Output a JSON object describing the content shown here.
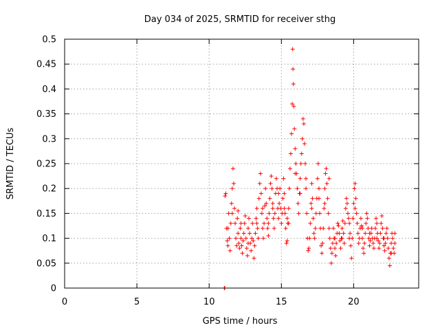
{
  "chart_data": {
    "type": "scatter",
    "title": "Day 034 of 2025, SRMTID for receiver sthg",
    "xlabel": "GPS time / hours",
    "ylabel": "SRMTID / TECUs",
    "xlim": [
      0,
      24.5
    ],
    "ylim": [
      0,
      0.5
    ],
    "xticks": [
      0,
      5,
      10,
      15,
      20
    ],
    "xtick_labels": [
      "0",
      "5",
      "10",
      "15",
      "20"
    ],
    "yticks": [
      0,
      0.05,
      0.1,
      0.15,
      0.2,
      0.25,
      0.3,
      0.35,
      0.4,
      0.45,
      0.5
    ],
    "ytick_labels": [
      "0",
      "0.05",
      "0.1",
      "0.15",
      "0.2",
      "0.25",
      "0.3",
      "0.35",
      "0.4",
      "0.45",
      "0.5"
    ],
    "grid": true,
    "marker": "+",
    "color": "#ff0000",
    "series": [
      {
        "name": "SRMTID",
        "points": [
          [
            11.05,
            0.0
          ],
          [
            11.08,
            0.0
          ],
          [
            11.1,
            0.185
          ],
          [
            11.15,
            0.19
          ],
          [
            11.2,
            0.12
          ],
          [
            11.25,
            0.095
          ],
          [
            11.3,
            0.085
          ],
          [
            11.35,
            0.15
          ],
          [
            11.4,
            0.1
          ],
          [
            11.45,
            0.075
          ],
          [
            11.5,
            0.13
          ],
          [
            11.55,
            0.17
          ],
          [
            11.6,
            0.2
          ],
          [
            11.65,
            0.24
          ],
          [
            11.7,
            0.21
          ],
          [
            11.75,
            0.16
          ],
          [
            11.8,
            0.13
          ],
          [
            11.85,
            0.1
          ],
          [
            11.9,
            0.085
          ],
          [
            11.95,
            0.14
          ],
          [
            12.0,
            0.11
          ],
          [
            12.05,
            0.09
          ],
          [
            12.1,
            0.08
          ],
          [
            12.15,
            0.12
          ],
          [
            12.2,
            0.1
          ],
          [
            12.25,
            0.085
          ],
          [
            12.3,
            0.07
          ],
          [
            12.35,
            0.095
          ],
          [
            12.4,
            0.11
          ],
          [
            12.45,
            0.13
          ],
          [
            12.5,
            0.145
          ],
          [
            12.55,
            0.1
          ],
          [
            12.6,
            0.08
          ],
          [
            12.65,
            0.065
          ],
          [
            12.7,
            0.12
          ],
          [
            12.75,
            0.14
          ],
          [
            12.8,
            0.11
          ],
          [
            12.85,
            0.09
          ],
          [
            12.9,
            0.075
          ],
          [
            12.95,
            0.1
          ],
          [
            13.0,
            0.13
          ],
          [
            13.05,
            0.095
          ],
          [
            13.1,
            0.06
          ],
          [
            13.15,
            0.085
          ],
          [
            13.2,
            0.11
          ],
          [
            13.25,
            0.14
          ],
          [
            13.3,
            0.16
          ],
          [
            13.35,
            0.12
          ],
          [
            13.4,
            0.1
          ],
          [
            13.45,
            0.18
          ],
          [
            13.5,
            0.21
          ],
          [
            13.55,
            0.23
          ],
          [
            13.6,
            0.19
          ],
          [
            13.65,
            0.15
          ],
          [
            13.7,
            0.12
          ],
          [
            13.75,
            0.1
          ],
          [
            13.8,
            0.13
          ],
          [
            13.85,
            0.165
          ],
          [
            13.9,
            0.2
          ],
          [
            13.95,
            0.17
          ],
          [
            14.0,
            0.14
          ],
          [
            14.05,
            0.12
          ],
          [
            14.1,
            0.105
          ],
          [
            14.15,
            0.15
          ],
          [
            14.2,
            0.18
          ],
          [
            14.25,
            0.21
          ],
          [
            14.3,
            0.225
          ],
          [
            14.35,
            0.2
          ],
          [
            14.4,
            0.17
          ],
          [
            14.45,
            0.14
          ],
          [
            14.5,
            0.12
          ],
          [
            14.55,
            0.15
          ],
          [
            14.6,
            0.19
          ],
          [
            14.65,
            0.22
          ],
          [
            14.7,
            0.2
          ],
          [
            14.75,
            0.16
          ],
          [
            14.8,
            0.14
          ],
          [
            14.85,
            0.17
          ],
          [
            14.9,
            0.2
          ],
          [
            14.95,
            0.16
          ],
          [
            15.0,
            0.13
          ],
          [
            15.05,
            0.15
          ],
          [
            15.1,
            0.18
          ],
          [
            15.15,
            0.22
          ],
          [
            15.2,
            0.19
          ],
          [
            15.25,
            0.15
          ],
          [
            15.3,
            0.12
          ],
          [
            15.35,
            0.09
          ],
          [
            15.4,
            0.095
          ],
          [
            15.45,
            0.13
          ],
          [
            15.5,
            0.16
          ],
          [
            15.55,
            0.2
          ],
          [
            15.6,
            0.24
          ],
          [
            15.65,
            0.27
          ],
          [
            15.7,
            0.31
          ],
          [
            15.75,
            0.37
          ],
          [
            15.78,
            0.48
          ],
          [
            15.8,
            0.44
          ],
          [
            15.83,
            0.41
          ],
          [
            15.86,
            0.365
          ],
          [
            15.9,
            0.32
          ],
          [
            15.95,
            0.28
          ],
          [
            16.0,
            0.25
          ],
          [
            16.05,
            0.23
          ],
          [
            16.1,
            0.2
          ],
          [
            16.15,
            0.17
          ],
          [
            16.2,
            0.15
          ],
          [
            16.25,
            0.19
          ],
          [
            16.3,
            0.22
          ],
          [
            16.35,
            0.25
          ],
          [
            16.4,
            0.27
          ],
          [
            16.45,
            0.3
          ],
          [
            16.5,
            0.34
          ],
          [
            16.55,
            0.33
          ],
          [
            16.6,
            0.29
          ],
          [
            16.65,
            0.25
          ],
          [
            16.7,
            0.2
          ],
          [
            16.75,
            0.15
          ],
          [
            16.8,
            0.1
          ],
          [
            16.85,
            0.075
          ],
          [
            16.9,
            0.08
          ],
          [
            16.95,
            0.1
          ],
          [
            17.0,
            0.13
          ],
          [
            17.05,
            0.17
          ],
          [
            17.1,
            0.21
          ],
          [
            17.15,
            0.18
          ],
          [
            17.2,
            0.14
          ],
          [
            17.25,
            0.11
          ],
          [
            17.3,
            0.1
          ],
          [
            17.35,
            0.12
          ],
          [
            17.4,
            0.15
          ],
          [
            17.45,
            0.18
          ],
          [
            17.5,
            0.22
          ],
          [
            17.55,
            0.25
          ],
          [
            17.6,
            0.2
          ],
          [
            17.65,
            0.15
          ],
          [
            17.7,
            0.12
          ],
          [
            17.75,
            0.085
          ],
          [
            17.8,
            0.07
          ],
          [
            17.85,
            0.09
          ],
          [
            17.9,
            0.12
          ],
          [
            17.95,
            0.16
          ],
          [
            18.0,
            0.2
          ],
          [
            18.05,
            0.23
          ],
          [
            18.1,
            0.24
          ],
          [
            18.15,
            0.21
          ],
          [
            18.2,
            0.18
          ],
          [
            18.25,
            0.15
          ],
          [
            18.3,
            0.12
          ],
          [
            18.35,
            0.1
          ],
          [
            18.4,
            0.08
          ],
          [
            18.45,
            0.05
          ],
          [
            18.5,
            0.07
          ],
          [
            18.55,
            0.09
          ],
          [
            18.6,
            0.12
          ],
          [
            18.65,
            0.1
          ],
          [
            18.7,
            0.08
          ],
          [
            18.75,
            0.065
          ],
          [
            18.8,
            0.09
          ],
          [
            18.85,
            0.11
          ],
          [
            18.9,
            0.13
          ],
          [
            18.95,
            0.125
          ],
          [
            19.0,
            0.11
          ],
          [
            19.05,
            0.095
          ],
          [
            19.1,
            0.08
          ],
          [
            19.15,
            0.1
          ],
          [
            19.2,
            0.12
          ],
          [
            19.25,
            0.135
          ],
          [
            19.3,
            0.11
          ],
          [
            19.35,
            0.09
          ],
          [
            19.4,
            0.13
          ],
          [
            19.45,
            0.16
          ],
          [
            19.5,
            0.18
          ],
          [
            19.55,
            0.17
          ],
          [
            19.6,
            0.15
          ],
          [
            19.65,
            0.14
          ],
          [
            19.7,
            0.13
          ],
          [
            19.75,
            0.11
          ],
          [
            19.8,
            0.085
          ],
          [
            19.85,
            0.06
          ],
          [
            19.9,
            0.1
          ],
          [
            19.95,
            0.14
          ],
          [
            20.0,
            0.17
          ],
          [
            20.05,
            0.2
          ],
          [
            20.1,
            0.21
          ],
          [
            20.15,
            0.18
          ],
          [
            20.2,
            0.15
          ],
          [
            20.25,
            0.13
          ],
          [
            20.3,
            0.11
          ],
          [
            20.35,
            0.09
          ],
          [
            20.4,
            0.1
          ],
          [
            20.45,
            0.12
          ],
          [
            20.5,
            0.14
          ],
          [
            20.55,
            0.125
          ],
          [
            20.6,
            0.1
          ],
          [
            20.65,
            0.08
          ],
          [
            20.7,
            0.07
          ],
          [
            20.75,
            0.09
          ],
          [
            20.8,
            0.11
          ],
          [
            20.85,
            0.13
          ],
          [
            20.9,
            0.15
          ],
          [
            20.95,
            0.14
          ],
          [
            21.0,
            0.12
          ],
          [
            21.05,
            0.1
          ],
          [
            21.1,
            0.085
          ],
          [
            21.15,
            0.095
          ],
          [
            21.2,
            0.11
          ],
          [
            21.25,
            0.12
          ],
          [
            21.3,
            0.1
          ],
          [
            21.35,
            0.09
          ],
          [
            21.4,
            0.08
          ],
          [
            21.45,
            0.1
          ],
          [
            21.5,
            0.12
          ],
          [
            21.55,
            0.14
          ],
          [
            21.6,
            0.13
          ],
          [
            21.65,
            0.11
          ],
          [
            21.7,
            0.095
          ],
          [
            21.75,
            0.08
          ],
          [
            21.8,
            0.09
          ],
          [
            21.85,
            0.11
          ],
          [
            21.9,
            0.13
          ],
          [
            21.95,
            0.145
          ],
          [
            22.0,
            0.12
          ],
          [
            22.05,
            0.1
          ],
          [
            22.1,
            0.085
          ],
          [
            22.15,
            0.075
          ],
          [
            22.2,
            0.09
          ],
          [
            22.25,
            0.11
          ],
          [
            22.3,
            0.12
          ],
          [
            22.35,
            0.1
          ],
          [
            22.4,
            0.08
          ],
          [
            22.45,
            0.06
          ],
          [
            22.5,
            0.045
          ],
          [
            22.55,
            0.07
          ],
          [
            22.6,
            0.09
          ],
          [
            22.65,
            0.11
          ],
          [
            22.7,
            0.1
          ],
          [
            22.75,
            0.08
          ],
          [
            22.8,
            0.07
          ],
          [
            22.85,
            0.09
          ],
          [
            11.3,
            0.12
          ],
          [
            11.6,
            0.15
          ],
          [
            12.2,
            0.13
          ],
          [
            12.7,
            0.09
          ],
          [
            13.3,
            0.13
          ],
          [
            13.7,
            0.16
          ],
          [
            14.1,
            0.13
          ],
          [
            14.4,
            0.16
          ],
          [
            14.8,
            0.19
          ],
          [
            15.2,
            0.16
          ],
          [
            15.5,
            0.13
          ],
          [
            15.95,
            0.23
          ],
          [
            16.3,
            0.19
          ],
          [
            16.7,
            0.22
          ],
          [
            17.1,
            0.16
          ],
          [
            17.6,
            0.18
          ],
          [
            18.0,
            0.17
          ],
          [
            18.3,
            0.22
          ],
          [
            18.7,
            0.1
          ],
          [
            19.2,
            0.1
          ],
          [
            19.7,
            0.1
          ],
          [
            20.1,
            0.16
          ],
          [
            20.6,
            0.12
          ],
          [
            21.1,
            0.11
          ],
          [
            21.6,
            0.1
          ],
          [
            22.1,
            0.1
          ],
          [
            22.6,
            0.07
          ],
          [
            22.85,
            0.11
          ],
          [
            12.0,
            0.155
          ],
          [
            15.4,
            0.14
          ]
        ]
      }
    ]
  }
}
